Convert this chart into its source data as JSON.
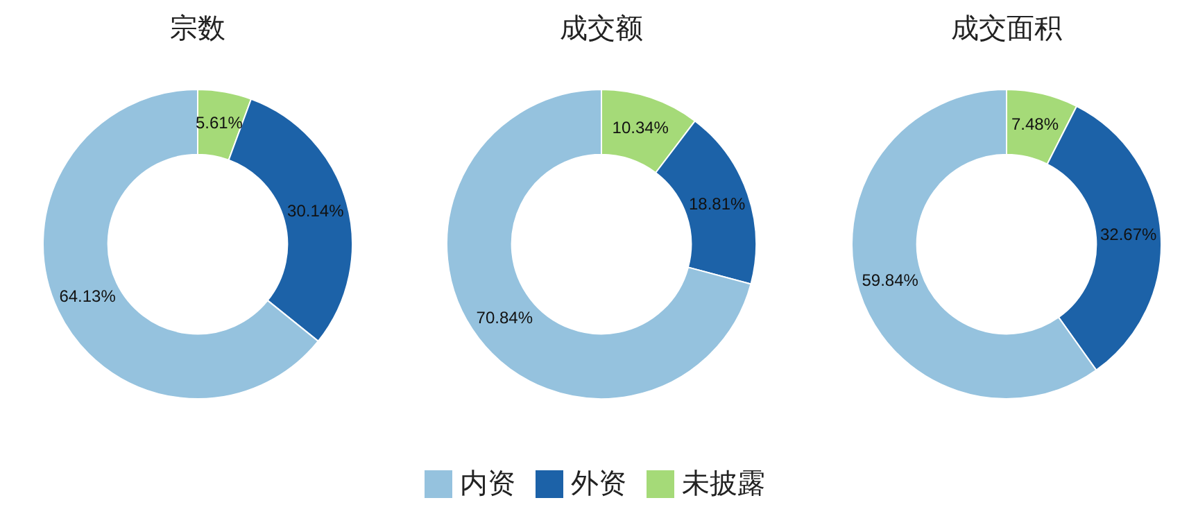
{
  "chart_data": [
    {
      "type": "donut",
      "title": "宗数",
      "categories": [
        "内资",
        "外资",
        "未披露"
      ],
      "values": [
        64.13,
        30.14,
        5.61
      ],
      "colors": [
        "#95c2de",
        "#1c62a8",
        "#a5da78"
      ],
      "value_labels": [
        "64.13%",
        "30.14%",
        "5.61%"
      ],
      "legend": "bottom"
    },
    {
      "type": "donut",
      "title": "成交额",
      "categories": [
        null,
        null,
        null
      ],
      "values": [
        70.84,
        18.81,
        10.34
      ],
      "colors": [
        "#95c2de",
        "#1c62a8",
        "#a5da78"
      ],
      "value_labels": [
        "70.84%",
        "18.81%",
        "10.34%"
      ]
    },
    {
      "type": "donut",
      "title": "成交面积",
      "categories": [
        null,
        null,
        null
      ],
      "values": [
        59.84,
        32.67,
        7.48
      ],
      "colors": [
        "#95c2de",
        "#1c62a8",
        "#a5da78"
      ],
      "value_labels": [
        "59.84%",
        "32.67%",
        "7.48%"
      ]
    }
  ]
}
